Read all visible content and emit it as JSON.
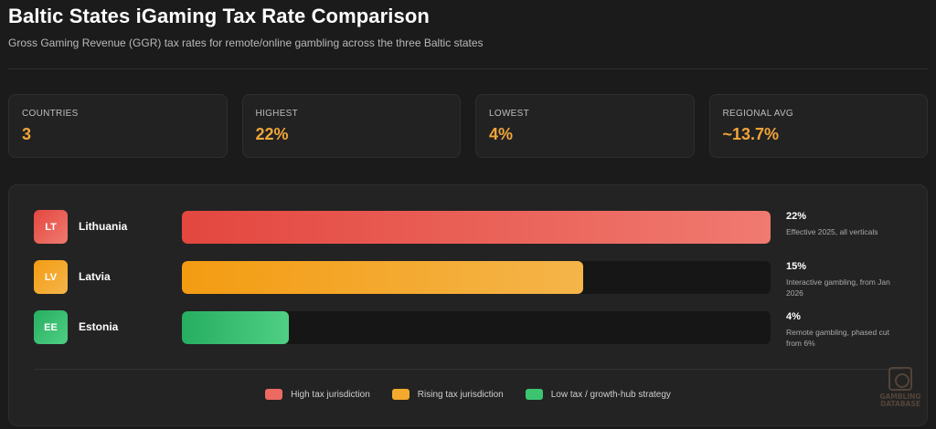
{
  "header": {
    "title": "Baltic States iGaming Tax Rate Comparison",
    "subtitle": "Gross Gaming Revenue (GGR) tax rates for remote/online gambling across the three Baltic states"
  },
  "stats": [
    {
      "label": "COUNTRIES",
      "value": "3"
    },
    {
      "label": "HIGHEST",
      "value": "22%"
    },
    {
      "label": "LOWEST",
      "value": "4%"
    },
    {
      "label": "REGIONAL AVG",
      "value": "~13.7%"
    }
  ],
  "chart_data": {
    "type": "bar",
    "orientation": "horizontal",
    "categories": [
      "Lithuania",
      "Latvia",
      "Estonia"
    ],
    "codes": [
      "LT",
      "LV",
      "EE"
    ],
    "values": [
      22,
      15,
      4
    ],
    "value_labels": [
      "22%",
      "15%",
      "4%"
    ],
    "notes": [
      "Effective 2025, all verticals",
      "Interactive gambling, from Jan 2026",
      "Remote gambling, phased cut from 6%"
    ],
    "xlim": [
      0,
      22
    ],
    "colors": [
      [
        "#e3473f",
        "#f07a70"
      ],
      [
        "#f39c12",
        "#f5b54a"
      ],
      [
        "#27ae60",
        "#4fcf84"
      ]
    ],
    "legend": [
      {
        "label": "High tax jurisdiction",
        "color": "#ec6a62"
      },
      {
        "label": "Rising tax jurisdiction",
        "color": "#f4a92c"
      },
      {
        "label": "Low tax / growth-hub strategy",
        "color": "#3cc471"
      }
    ],
    "grid": false,
    "legend_position": "bottom-center"
  },
  "watermark": {
    "line1": "GAMBLING",
    "line2": "DATABASE"
  }
}
